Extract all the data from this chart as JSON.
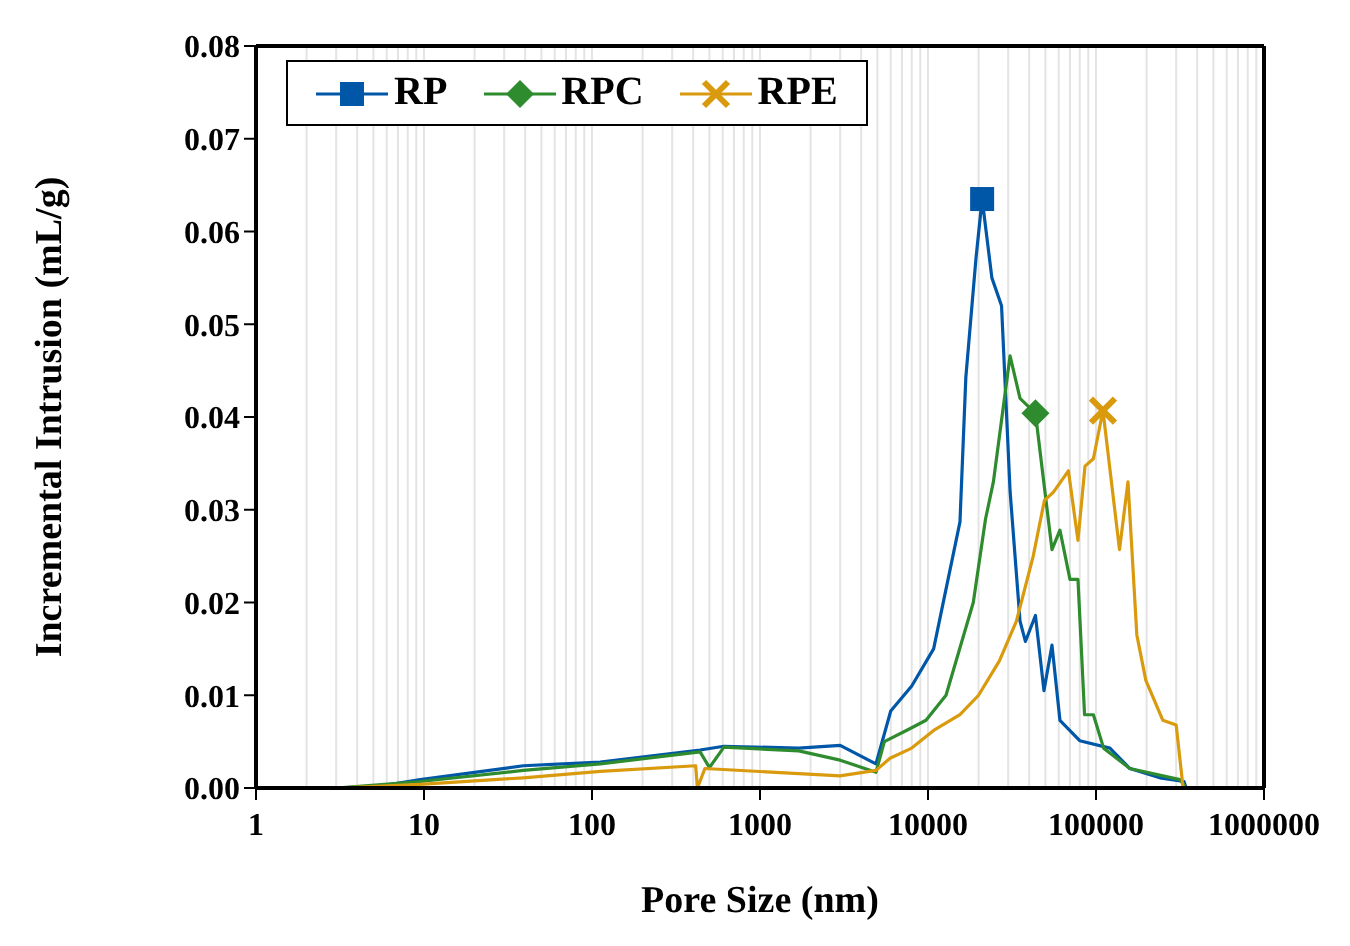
{
  "chart_data": {
    "type": "line",
    "xlabel": "Pore Size (nm)",
    "ylabel": "Incremental Intrusion (mL/g)",
    "log": "x",
    "grid": "x",
    "legend": "top left",
    "xlim": [
      1,
      1000000
    ],
    "xticks": [
      1,
      10,
      100,
      1000,
      10000,
      100000,
      1000000
    ],
    "ylim": [
      0,
      0.08
    ],
    "yticks": [
      {
        "value": 0,
        "label": "0.00"
      },
      {
        "value": 0.01,
        "label": "0.01"
      },
      {
        "value": 0.02,
        "label": "0.02"
      },
      {
        "value": 0.03,
        "label": "0.03"
      },
      {
        "value": 0.04,
        "label": "0.04"
      },
      {
        "value": 0.05,
        "label": "0.05"
      },
      {
        "value": 0.06,
        "label": "0.06"
      },
      {
        "value": 0.07,
        "label": "0.07"
      },
      {
        "value": 0.08,
        "label": "0.08"
      }
    ],
    "series": [
      {
        "name": "RP",
        "color": "#0057a8",
        "x": [
          3,
          5.5,
          9.5,
          39,
          112,
          440,
          610,
          1700,
          3000,
          4900,
          6000,
          8000,
          10800,
          15500,
          16800,
          19300,
          21000,
          24000,
          27400,
          30800,
          35300,
          38000,
          43600,
          49000,
          54700,
          61000,
          80000,
          121000,
          159000,
          240000,
          334000,
          344000
        ],
        "values": [
          0,
          0.0002,
          0.0009,
          0.0024,
          0.0028,
          0.0041,
          0.0045,
          0.0043,
          0.0046,
          0.0026,
          0.0083,
          0.011,
          0.015,
          0.0287,
          0.0443,
          0.0571,
          0.0635,
          0.055,
          0.052,
          0.032,
          0.018,
          0.0158,
          0.0186,
          0.0105,
          0.0154,
          0.0073,
          0.0051,
          0.0043,
          0.0021,
          0.0011,
          0.0007,
          0
        ]
      },
      {
        "name": "RPC",
        "color": "#2e8b2e",
        "x": [
          3,
          9.5,
          39,
          112,
          440,
          500,
          610,
          1700,
          3000,
          4900,
          5500,
          8000,
          9730,
          12800,
          18600,
          22000,
          24500,
          30800,
          35300,
          43600,
          54700,
          61000,
          70000,
          78100,
          85500,
          96500,
          111000,
          159000,
          316000,
          344000
        ],
        "values": [
          0,
          0.0007,
          0.0019,
          0.0026,
          0.0039,
          0.0022,
          0.0044,
          0.004,
          0.003,
          0.0017,
          0.005,
          0.0065,
          0.0073,
          0.01,
          0.02,
          0.029,
          0.033,
          0.0466,
          0.042,
          0.0404,
          0.0257,
          0.0278,
          0.0225,
          0.0225,
          0.0079,
          0.0079,
          0.0043,
          0.0021,
          0.0009,
          0
        ]
      },
      {
        "name": "RPE",
        "color": "#d99a0e",
        "x": [
          3,
          9.5,
          39,
          112,
          414,
          424,
          470,
          2990,
          4900,
          5940,
          8000,
          10800,
          15500,
          20000,
          26600,
          33600,
          42300,
          49300,
          55800,
          68500,
          78100,
          86000,
          96500,
          110000,
          138000,
          155000,
          175000,
          198000,
          250000,
          300000,
          330000
        ],
        "values": [
          0,
          0.0004,
          0.0011,
          0.0018,
          0.0024,
          0,
          0.0021,
          0.0013,
          0.0019,
          0.0032,
          0.0043,
          0.0062,
          0.0079,
          0.01,
          0.0137,
          0.018,
          0.025,
          0.031,
          0.0319,
          0.0342,
          0.0267,
          0.0347,
          0.0355,
          0.0407,
          0.0257,
          0.033,
          0.0165,
          0.0116,
          0.0073,
          0.0068,
          0
        ]
      },
      {
        "type": "scatter",
        "color": "#0057a8",
        "marker": "square",
        "x": [
          21000
        ],
        "values": [
          0.0635
        ]
      },
      {
        "type": "scatter",
        "color": "#2e8b2e",
        "marker": "diamond",
        "x": [
          43600
        ],
        "values": [
          0.0404
        ]
      },
      {
        "type": "scatter",
        "color": "#d99a0e",
        "marker": "cross",
        "x": [
          110000
        ],
        "values": [
          0.0407
        ]
      }
    ]
  }
}
